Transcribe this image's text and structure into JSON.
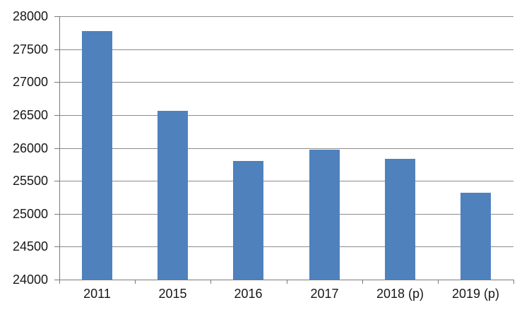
{
  "chart_data": {
    "type": "bar",
    "title": "",
    "xlabel": "",
    "ylabel": "",
    "categories": [
      "2011",
      "2015",
      "2016",
      "2017",
      "2018 (p)",
      "2019 (p)"
    ],
    "values": [
      27770,
      26560,
      25800,
      25970,
      25830,
      25320
    ],
    "ylim": [
      24000,
      28000
    ],
    "ytick_step": 500,
    "ytick_labels": [
      "24000",
      "24500",
      "25000",
      "25500",
      "26000",
      "26500",
      "27000",
      "27500",
      "28000"
    ],
    "grid": true,
    "legend": false,
    "colors": {
      "bar": "#4f81bd",
      "gridline": "#8c8c8c",
      "axis": "#7a7a7a",
      "text": "#171717",
      "background": "#ffffff"
    }
  }
}
